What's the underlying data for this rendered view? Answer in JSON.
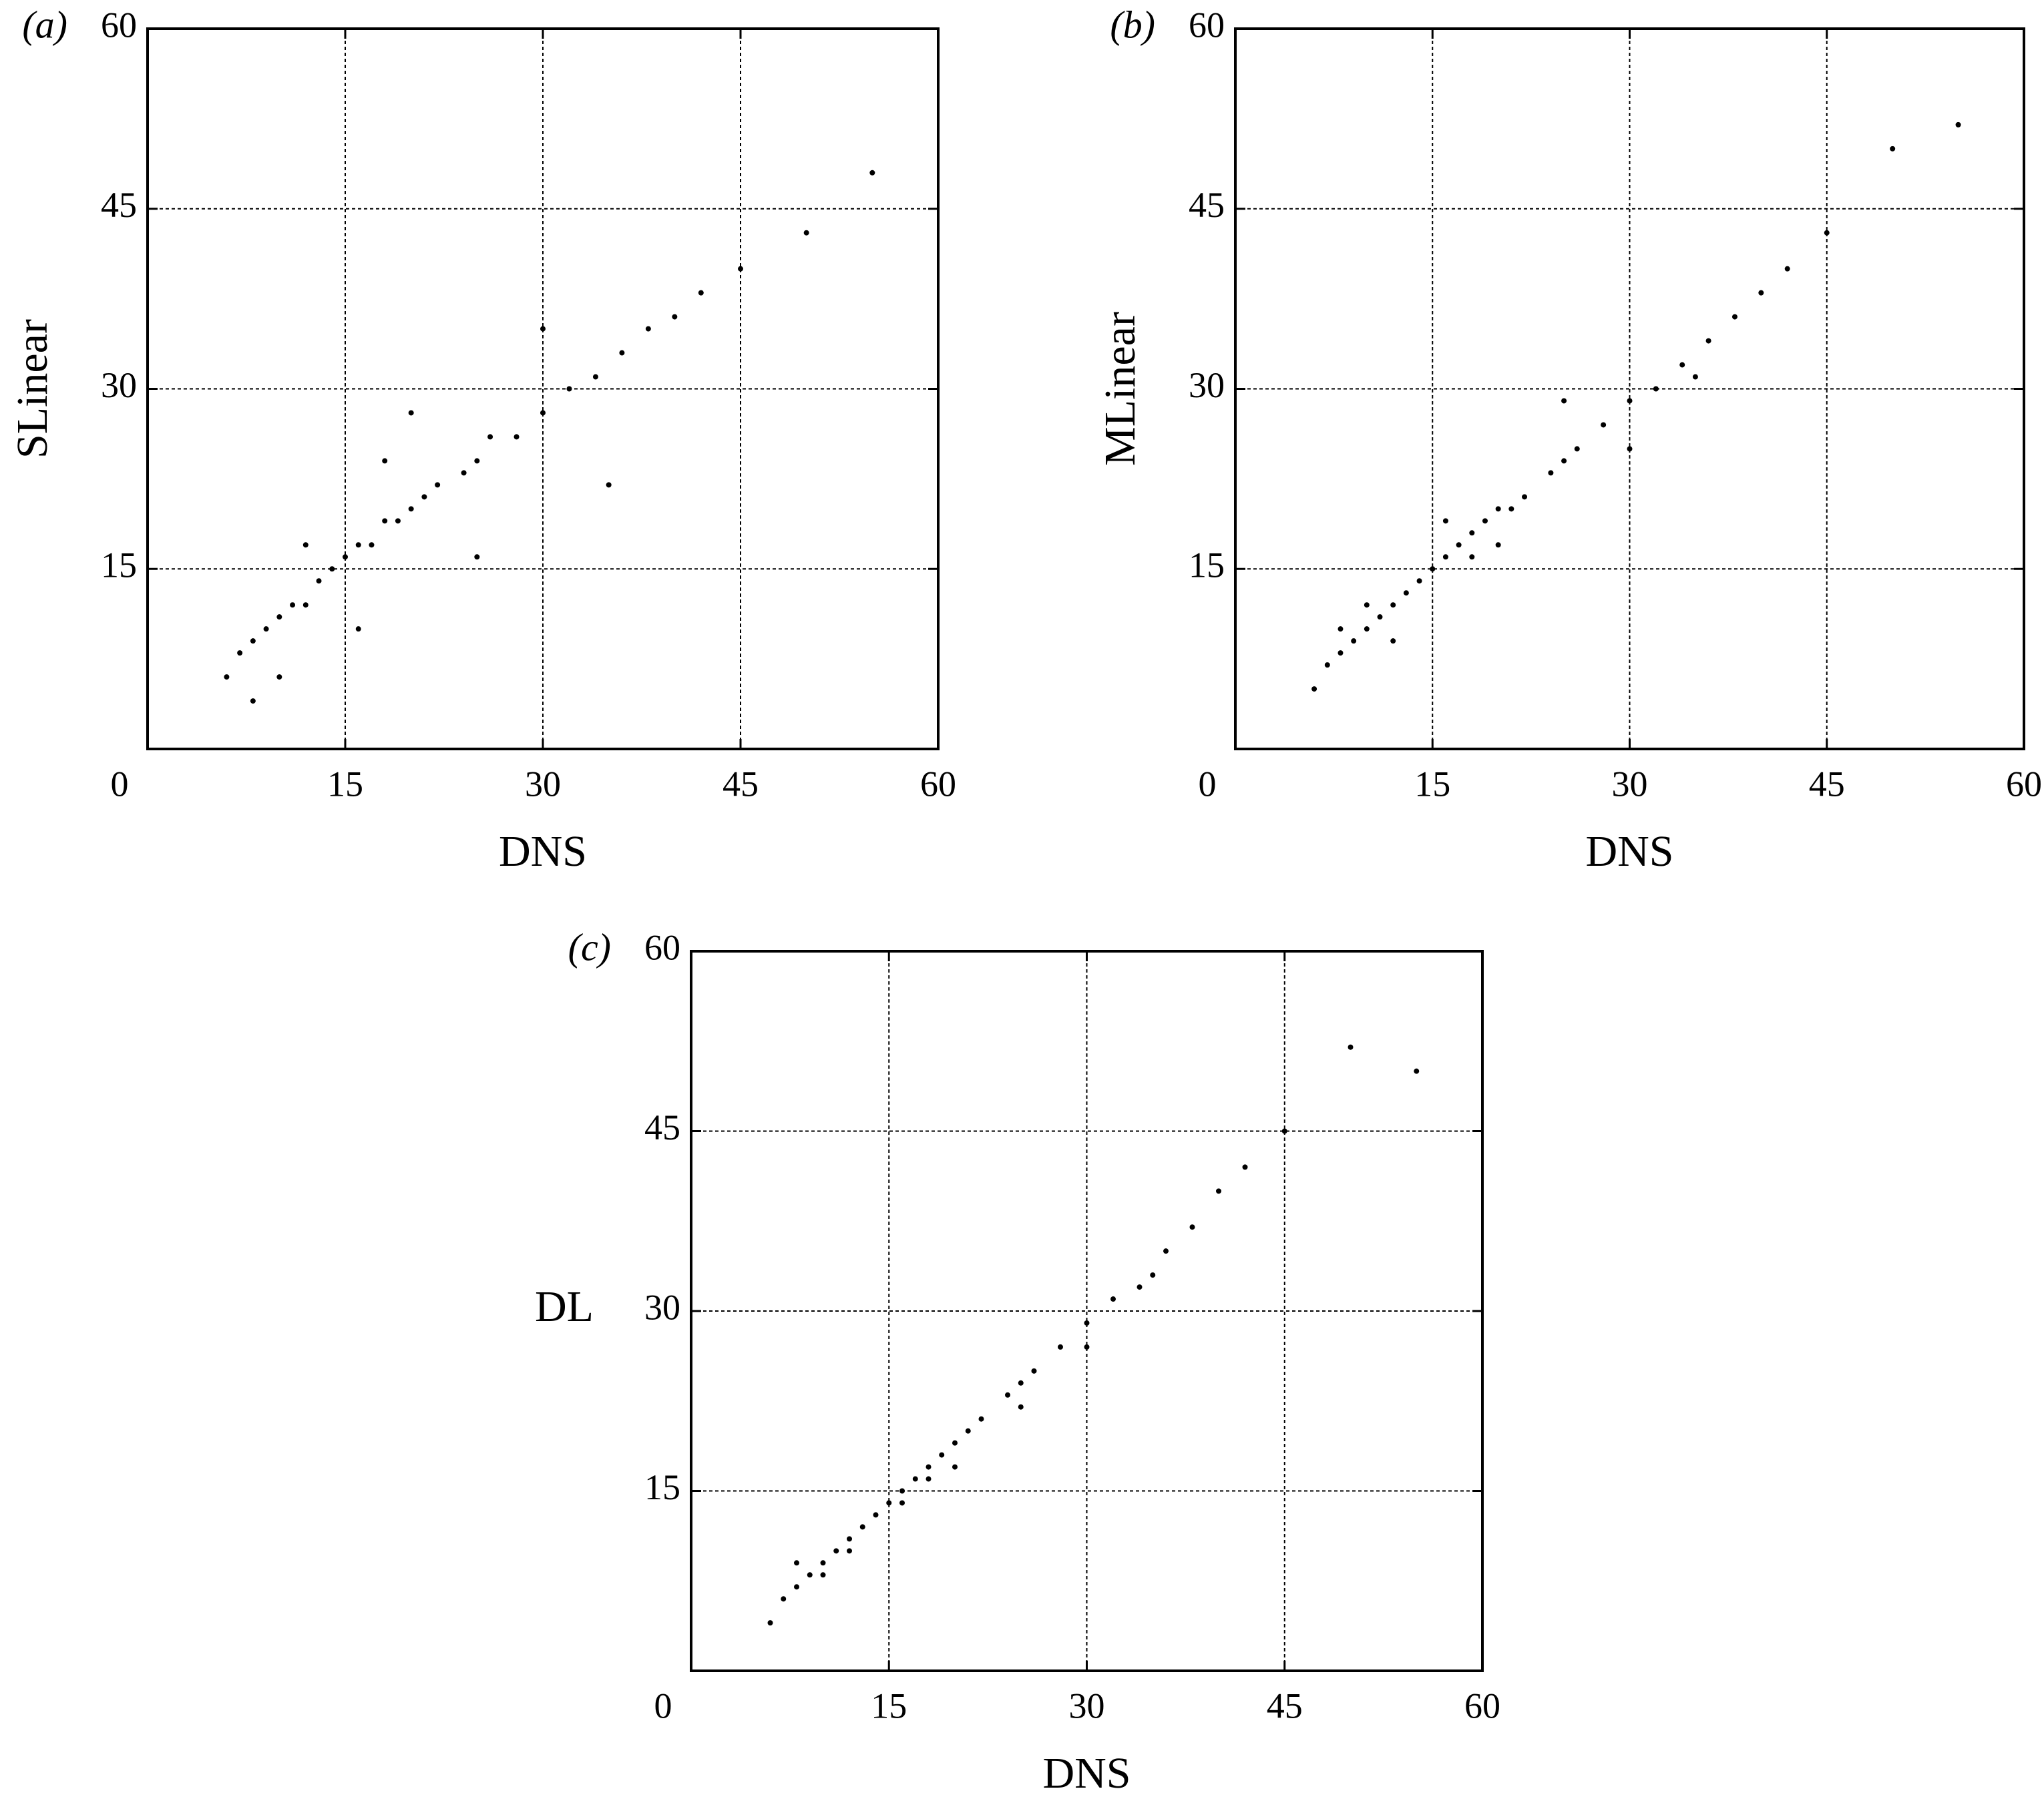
{
  "chart_data": [
    {
      "type": "scatter",
      "label": "(a)",
      "x_label": "DNS",
      "y_label": "SLinear",
      "color": "#000000",
      "grid": true,
      "xlim": [
        0,
        60
      ],
      "ylim": [
        0,
        60
      ],
      "xticks": [
        0,
        15,
        30,
        45,
        60
      ],
      "yticks": [
        15,
        30,
        45,
        60
      ],
      "x": [
        6,
        7,
        8,
        9,
        10,
        11,
        12,
        13,
        14,
        15,
        16,
        17,
        18,
        19,
        20,
        21,
        22,
        24,
        25,
        26,
        28,
        30,
        32,
        34,
        36,
        38,
        40,
        42,
        45,
        50,
        55,
        8,
        12,
        16,
        20,
        25,
        30,
        35,
        10,
        18
      ],
      "y": [
        6,
        8,
        9,
        10,
        11,
        12,
        12,
        14,
        15,
        16,
        17,
        17,
        19,
        19,
        20,
        21,
        22,
        23,
        24,
        26,
        26,
        28,
        30,
        31,
        33,
        35,
        36,
        38,
        40,
        43,
        48,
        4,
        17,
        10,
        28,
        16,
        35,
        22,
        6,
        24
      ]
    },
    {
      "type": "scatter",
      "label": "(b)",
      "x_label": "DNS",
      "y_label": "MLinear",
      "color": "#000000",
      "grid": true,
      "xlim": [
        0,
        60
      ],
      "ylim": [
        0,
        60
      ],
      "xticks": [
        0,
        15,
        30,
        45,
        60
      ],
      "yticks": [
        15,
        30,
        45,
        60
      ],
      "x": [
        6,
        7,
        8,
        9,
        10,
        11,
        12,
        13,
        14,
        15,
        16,
        17,
        18,
        19,
        20,
        21,
        22,
        24,
        25,
        26,
        28,
        30,
        32,
        34,
        36,
        38,
        40,
        42,
        45,
        50,
        55,
        8,
        12,
        16,
        20,
        25,
        30,
        35,
        10,
        18
      ],
      "y": [
        5,
        7,
        8,
        9,
        10,
        11,
        12,
        13,
        14,
        15,
        16,
        17,
        18,
        19,
        20,
        20,
        21,
        23,
        24,
        25,
        27,
        29,
        30,
        32,
        34,
        36,
        38,
        40,
        43,
        50,
        52,
        10,
        9,
        19,
        17,
        29,
        25,
        31,
        12,
        16
      ]
    },
    {
      "type": "scatter",
      "label": "(c)",
      "x_label": "DNS",
      "y_label": "DL",
      "color": "#000000",
      "grid": true,
      "xlim": [
        0,
        60
      ],
      "ylim": [
        0,
        60
      ],
      "xticks": [
        0,
        15,
        30,
        45,
        60
      ],
      "yticks": [
        15,
        30,
        45,
        60
      ],
      "x": [
        6,
        7,
        8,
        9,
        10,
        11,
        12,
        13,
        14,
        15,
        16,
        17,
        18,
        19,
        20,
        21,
        22,
        24,
        25,
        26,
        28,
        30,
        32,
        34,
        36,
        38,
        40,
        42,
        45,
        50,
        55,
        8,
        12,
        16,
        20,
        25,
        30,
        35,
        10,
        18
      ],
      "y": [
        4,
        6,
        7,
        8,
        9,
        10,
        11,
        12,
        13,
        14,
        15,
        16,
        17,
        18,
        19,
        20,
        21,
        23,
        24,
        25,
        27,
        29,
        31,
        32,
        35,
        37,
        40,
        42,
        45,
        52,
        50,
        9,
        10,
        14,
        17,
        22,
        27,
        33,
        8,
        16
      ]
    }
  ]
}
